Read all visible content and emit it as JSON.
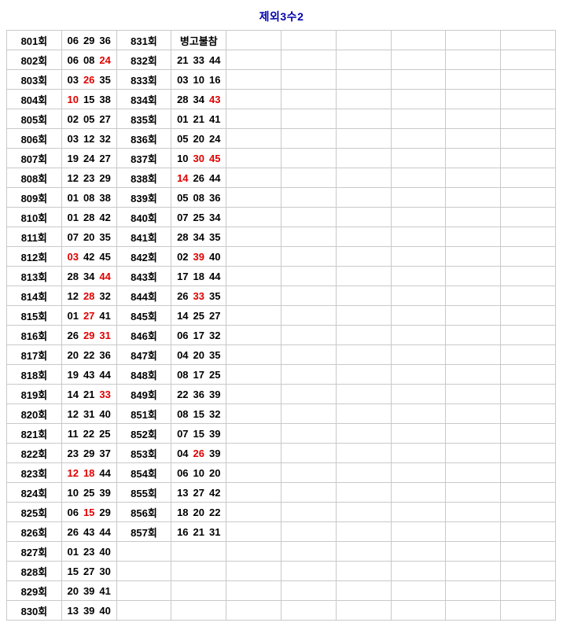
{
  "colors": {
    "title": "#0000b0",
    "red_highlight": "#e00000",
    "text": "#000000",
    "border": "#c9c9c9",
    "background": "#ffffff"
  },
  "chart_data": {
    "type": "table",
    "title": "제외3수2",
    "num_columns": 10,
    "empty_trailing_columns": 6,
    "red_note": "red_l / red_r are 0-based indices of number tokens rendered in red",
    "rows": [
      {
        "round_l": "801회",
        "nums_l": "06 29 36",
        "red_l": [],
        "round_r": "831회",
        "nums_r": "병고불참",
        "red_r": []
      },
      {
        "round_l": "802회",
        "nums_l": "06 08 24",
        "red_l": [
          2
        ],
        "round_r": "832회",
        "nums_r": "21 33 44",
        "red_r": []
      },
      {
        "round_l": "803회",
        "nums_l": "03 26 35",
        "red_l": [
          1
        ],
        "round_r": "833회",
        "nums_r": "03 10 16",
        "red_r": []
      },
      {
        "round_l": "804회",
        "nums_l": "10 15 38",
        "red_l": [
          0
        ],
        "round_r": "834회",
        "nums_r": "28 34 43",
        "red_r": [
          2
        ]
      },
      {
        "round_l": "805회",
        "nums_l": "02 05 27",
        "red_l": [],
        "round_r": "835회",
        "nums_r": "01 21 41",
        "red_r": []
      },
      {
        "round_l": "806회",
        "nums_l": "03 12 32",
        "red_l": [],
        "round_r": "836회",
        "nums_r": "05 20 24",
        "red_r": []
      },
      {
        "round_l": "807회",
        "nums_l": "19 24 27",
        "red_l": [],
        "round_r": "837회",
        "nums_r": "10 30 45",
        "red_r": [
          1,
          2
        ]
      },
      {
        "round_l": "808회",
        "nums_l": "12 23 29",
        "red_l": [],
        "round_r": "838회",
        "nums_r": "14 26 44",
        "red_r": [
          0
        ]
      },
      {
        "round_l": "809회",
        "nums_l": "01 08 38",
        "red_l": [],
        "round_r": "839회",
        "nums_r": "05 08 36",
        "red_r": []
      },
      {
        "round_l": "810회",
        "nums_l": "01 28 42",
        "red_l": [],
        "round_r": "840회",
        "nums_r": "07 25 34",
        "red_r": []
      },
      {
        "round_l": "811회",
        "nums_l": "07 20 35",
        "red_l": [],
        "round_r": "841회",
        "nums_r": "28 34 35",
        "red_r": []
      },
      {
        "round_l": "812회",
        "nums_l": "03 42 45",
        "red_l": [
          0
        ],
        "round_r": "842회",
        "nums_r": "02 39 40",
        "red_r": [
          1
        ]
      },
      {
        "round_l": "813회",
        "nums_l": "28 34 44",
        "red_l": [
          2
        ],
        "round_r": "843회",
        "nums_r": "17 18 44",
        "red_r": []
      },
      {
        "round_l": "814회",
        "nums_l": "12 28 32",
        "red_l": [
          1
        ],
        "round_r": "844회",
        "nums_r": "26 33 35",
        "red_r": [
          1
        ]
      },
      {
        "round_l": "815회",
        "nums_l": "01 27 41",
        "red_l": [
          1
        ],
        "round_r": "845회",
        "nums_r": "14 25 27",
        "red_r": []
      },
      {
        "round_l": "816회",
        "nums_l": "26 29 31",
        "red_l": [
          1,
          2
        ],
        "round_r": "846회",
        "nums_r": "06 17 32",
        "red_r": []
      },
      {
        "round_l": "817회",
        "nums_l": "20 22 36",
        "red_l": [],
        "round_r": "847회",
        "nums_r": "04 20 35",
        "red_r": []
      },
      {
        "round_l": "818회",
        "nums_l": "19 43 44",
        "red_l": [],
        "round_r": "848회",
        "nums_r": "08 17 25",
        "red_r": []
      },
      {
        "round_l": "819회",
        "nums_l": "14 21 33",
        "red_l": [
          2
        ],
        "round_r": "849회",
        "nums_r": "22 36 39",
        "red_r": []
      },
      {
        "round_l": "820회",
        "nums_l": "12 31 40",
        "red_l": [],
        "round_r": "851회",
        "nums_r": "08 15 32",
        "red_r": []
      },
      {
        "round_l": "821회",
        "nums_l": "11 22 25",
        "red_l": [],
        "round_r": "852회",
        "nums_r": "07 15 39",
        "red_r": []
      },
      {
        "round_l": "822회",
        "nums_l": "23 29 37",
        "red_l": [],
        "round_r": "853회",
        "nums_r": "04 26 39",
        "red_r": [
          1
        ]
      },
      {
        "round_l": "823회",
        "nums_l": "12 18 44",
        "red_l": [
          0,
          1
        ],
        "round_r": "854회",
        "nums_r": "06 10 20",
        "red_r": []
      },
      {
        "round_l": "824회",
        "nums_l": "10 25 39",
        "red_l": [],
        "round_r": "855회",
        "nums_r": "13 27 42",
        "red_r": []
      },
      {
        "round_l": "825회",
        "nums_l": "06 15 29",
        "red_l": [
          1
        ],
        "round_r": "856회",
        "nums_r": "18 20 22",
        "red_r": []
      },
      {
        "round_l": "826회",
        "nums_l": "26 43 44",
        "red_l": [],
        "round_r": "857회",
        "nums_r": "16 21 31",
        "red_r": []
      },
      {
        "round_l": "827회",
        "nums_l": "01 23 40",
        "red_l": [],
        "round_r": "",
        "nums_r": "",
        "red_r": []
      },
      {
        "round_l": "828회",
        "nums_l": "15 27 30",
        "red_l": [],
        "round_r": "",
        "nums_r": "",
        "red_r": []
      },
      {
        "round_l": "829회",
        "nums_l": "20 39 41",
        "red_l": [],
        "round_r": "",
        "nums_r": "",
        "red_r": []
      },
      {
        "round_l": "830회",
        "nums_l": "13 39 40",
        "red_l": [],
        "round_r": "",
        "nums_r": "",
        "red_r": []
      }
    ]
  }
}
